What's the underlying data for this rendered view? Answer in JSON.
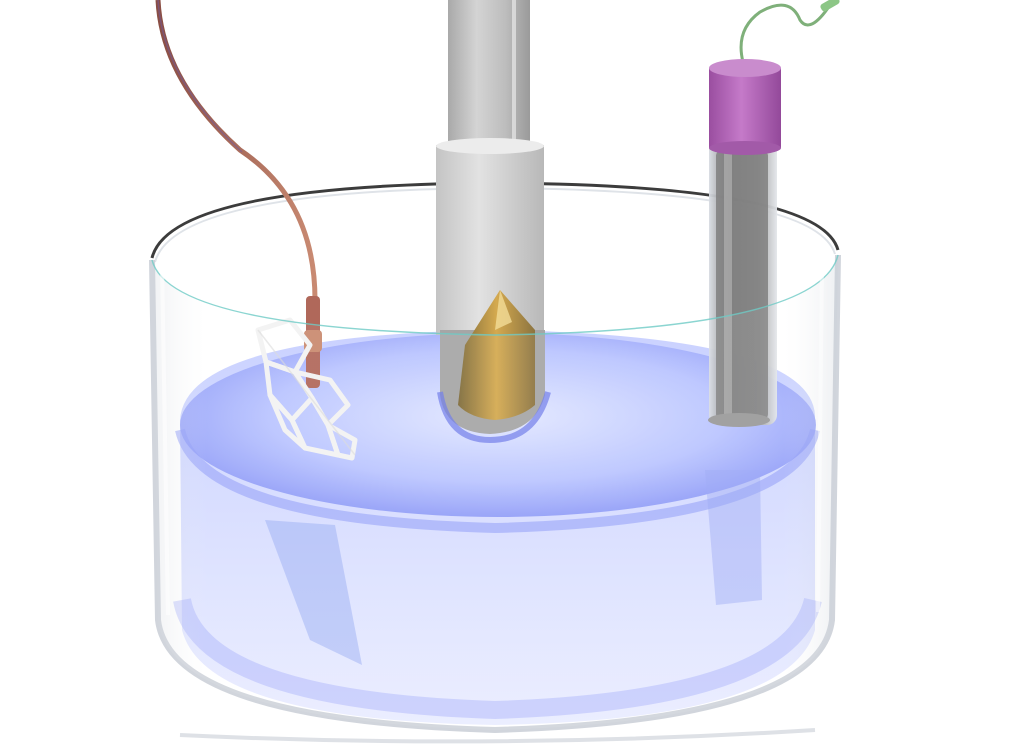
{
  "scene": {
    "background_color": "#ffffff",
    "objects": [
      {
        "name": "glass-beaker",
        "color": "#d8dde4"
      },
      {
        "name": "electrolyte-liquid",
        "color": "#7f8cf5"
      },
      {
        "name": "working-electrode-column",
        "color": "#c9c9c9"
      },
      {
        "name": "conical-gold-tip",
        "color": "#b8903e"
      },
      {
        "name": "mesh-counter-electrode",
        "color": "#f2f2f2"
      },
      {
        "name": "copper-lead-wire",
        "color": "#b7705e"
      },
      {
        "name": "reference-electrode-tube",
        "color": "#8a8a8a"
      },
      {
        "name": "reference-electrode-cap",
        "color": "#b263b6"
      },
      {
        "name": "green-lead-wire",
        "color": "#7fb07a"
      }
    ]
  }
}
